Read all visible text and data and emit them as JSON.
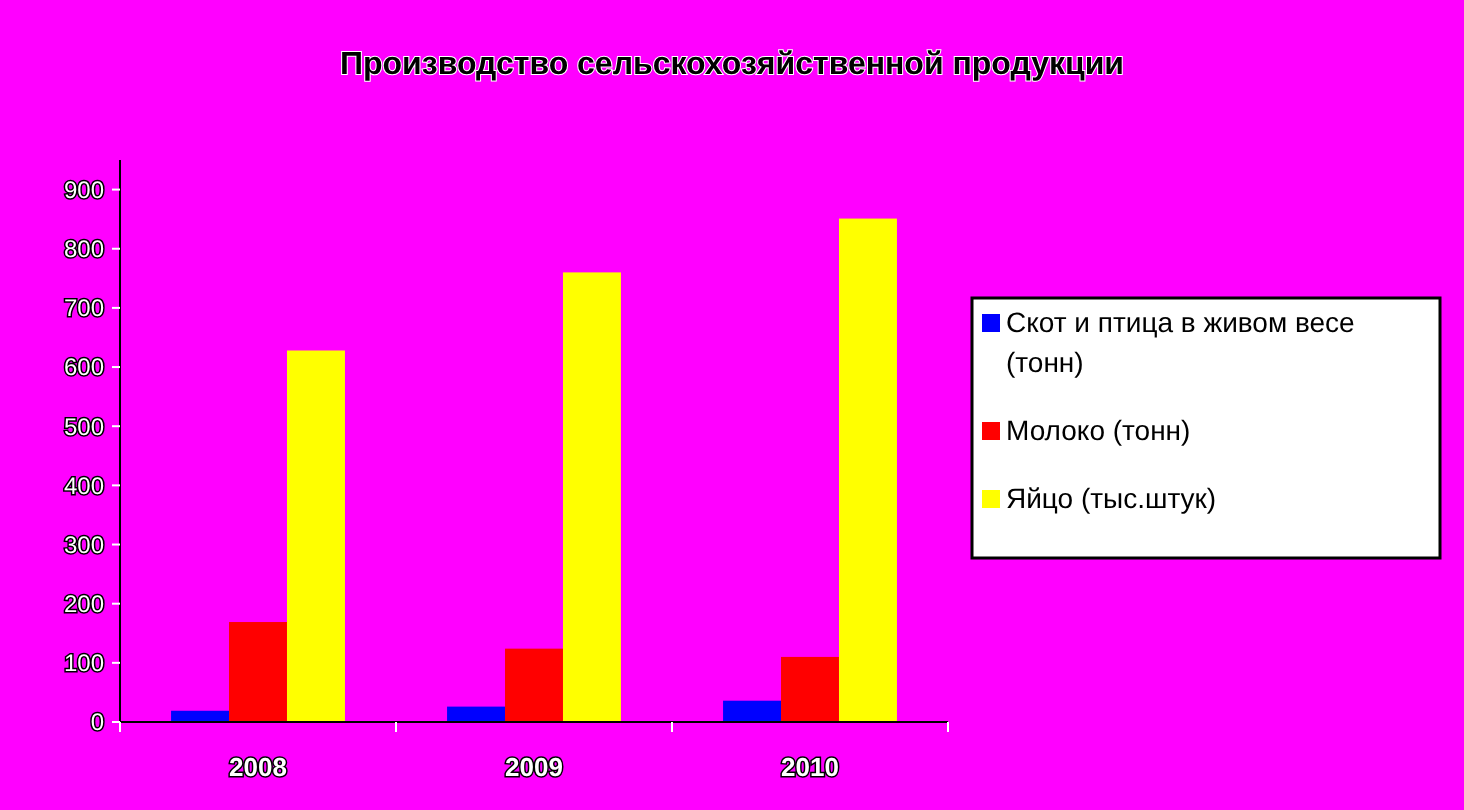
{
  "chart_data": {
    "type": "bar",
    "title": "Производство сельскохозяйственной продукции",
    "categories": [
      "2008",
      "2009",
      "2010"
    ],
    "series": [
      {
        "name": "Скот и птица в живом весе (тонн)",
        "color": "#0000ff",
        "values": [
          19,
          26,
          36
        ]
      },
      {
        "name": "Молоко (тонн)",
        "color": "#ff0000",
        "values": [
          169,
          124,
          110
        ]
      },
      {
        "name": "Яйцо (тыс.штук)",
        "color": "#ffff00",
        "values": [
          628,
          760,
          851
        ]
      }
    ],
    "ylim": [
      0,
      950
    ],
    "yticks": [
      0,
      100,
      200,
      300,
      400,
      500,
      600,
      700,
      800,
      900
    ],
    "grid": false,
    "legend": "right"
  }
}
